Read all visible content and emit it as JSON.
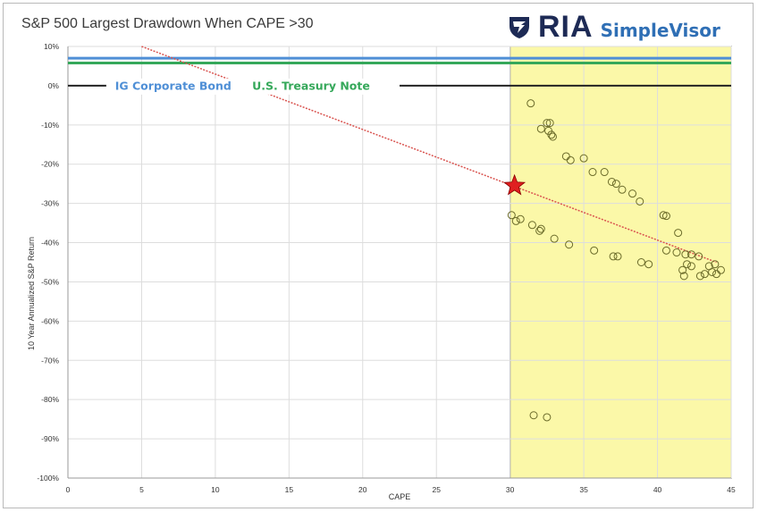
{
  "title": "S&P 500 Largest Drawdown When CAPE >30",
  "logo": {
    "brand": "RIA",
    "product": "SimpleVisor",
    "icon": "shield-eagle-icon"
  },
  "chart_data": {
    "type": "scatter",
    "title": "S&P 500 Largest Drawdown When CAPE >30",
    "xlabel": "CAPE",
    "ylabel": "10 Year Annualized S&P Return",
    "xlim": [
      0,
      45
    ],
    "ylim": [
      -100,
      10
    ],
    "x_ticks": [
      "0",
      "5",
      "10",
      "15",
      "20",
      "25",
      "30",
      "35",
      "40",
      "45"
    ],
    "y_ticks": [
      "10%",
      "0%",
      "-10%",
      "-20%",
      "-30%",
      "-40%",
      "-50%",
      "-60%",
      "-70%",
      "-80%",
      "-90%",
      "-100%"
    ],
    "grid": true,
    "highlight_region": {
      "x_from": 30,
      "x_to": 45,
      "color": "#fbf8a8"
    },
    "reference_lines": [
      {
        "name": "IG Corporate Bond",
        "y": 7,
        "color": "#4f8fd6"
      },
      {
        "name": "U.S. Treasury Note",
        "y": 5.8,
        "color": "#35a85a"
      },
      {
        "name": "",
        "y": 0,
        "color": "#222222"
      }
    ],
    "trendline": {
      "x": [
        5,
        44
      ],
      "y": [
        10,
        -45
      ],
      "color": "#d9534f"
    },
    "marker": {
      "x": 30.3,
      "y": -25.5,
      "shape": "star",
      "color": "#e02020"
    },
    "points": [
      {
        "x": 31.4,
        "y": -4.5
      },
      {
        "x": 32.1,
        "y": -11
      },
      {
        "x": 32.5,
        "y": -9.5
      },
      {
        "x": 32.7,
        "y": -9.5
      },
      {
        "x": 32.6,
        "y": -11.5
      },
      {
        "x": 32.8,
        "y": -12.5
      },
      {
        "x": 32.9,
        "y": -13
      },
      {
        "x": 33.8,
        "y": -18
      },
      {
        "x": 34.1,
        "y": -19
      },
      {
        "x": 35.0,
        "y": -18.5
      },
      {
        "x": 35.6,
        "y": -22
      },
      {
        "x": 36.4,
        "y": -22
      },
      {
        "x": 36.9,
        "y": -24.5
      },
      {
        "x": 37.2,
        "y": -25
      },
      {
        "x": 37.6,
        "y": -26.5
      },
      {
        "x": 38.3,
        "y": -27.5
      },
      {
        "x": 38.8,
        "y": -29.5
      },
      {
        "x": 40.4,
        "y": -33
      },
      {
        "x": 40.6,
        "y": -33.2
      },
      {
        "x": 41.4,
        "y": -37.5
      },
      {
        "x": 30.1,
        "y": -33
      },
      {
        "x": 30.4,
        "y": -34.5
      },
      {
        "x": 30.7,
        "y": -34
      },
      {
        "x": 31.5,
        "y": -35.5
      },
      {
        "x": 32.1,
        "y": -36.5
      },
      {
        "x": 32.0,
        "y": -37
      },
      {
        "x": 33.0,
        "y": -39
      },
      {
        "x": 34.0,
        "y": -40.5
      },
      {
        "x": 35.7,
        "y": -42
      },
      {
        "x": 37.0,
        "y": -43.5
      },
      {
        "x": 37.3,
        "y": -43.5
      },
      {
        "x": 38.9,
        "y": -45
      },
      {
        "x": 39.4,
        "y": -45.5
      },
      {
        "x": 40.6,
        "y": -42
      },
      {
        "x": 41.3,
        "y": -42.5
      },
      {
        "x": 41.9,
        "y": -43
      },
      {
        "x": 42.3,
        "y": -43
      },
      {
        "x": 42.8,
        "y": -43.5
      },
      {
        "x": 42.0,
        "y": -45.5
      },
      {
        "x": 41.7,
        "y": -47
      },
      {
        "x": 42.3,
        "y": -46
      },
      {
        "x": 41.8,
        "y": -48.5
      },
      {
        "x": 42.9,
        "y": -48.5
      },
      {
        "x": 43.2,
        "y": -48
      },
      {
        "x": 43.5,
        "y": -46
      },
      {
        "x": 43.7,
        "y": -47.5
      },
      {
        "x": 43.9,
        "y": -45.5
      },
      {
        "x": 44.3,
        "y": -47
      },
      {
        "x": 44.0,
        "y": -48
      },
      {
        "x": 31.6,
        "y": -84
      },
      {
        "x": 32.5,
        "y": -84.5
      }
    ]
  }
}
